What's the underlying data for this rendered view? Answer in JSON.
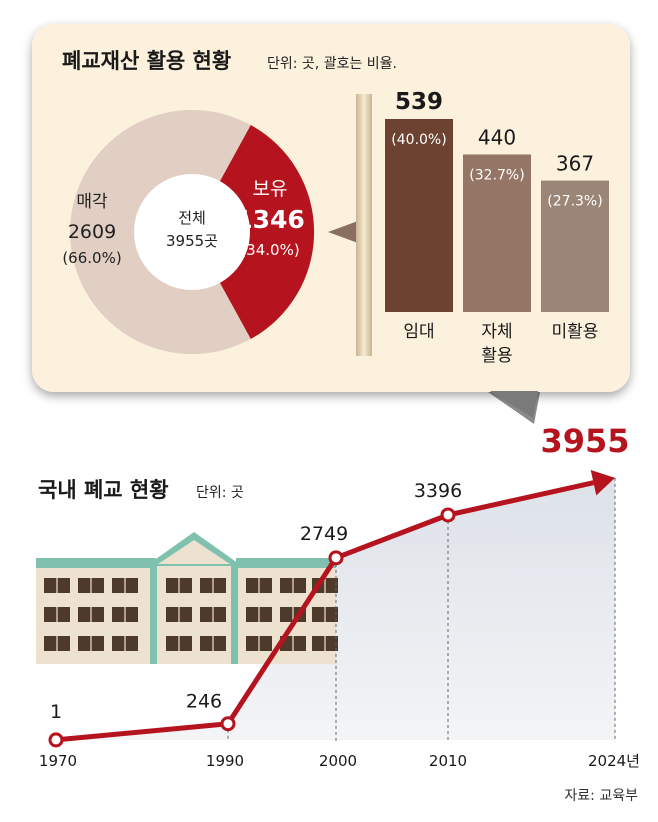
{
  "colors": {
    "card_bg": "#fbf1dc",
    "red": "#b5141e",
    "donut_beige": "#e0cfc2",
    "bar_dark": "#6d4230",
    "bar_mid": "#957565",
    "bar_light": "#9a8577",
    "area_fill": "#e8ebf0",
    "building_wall": "#ede2d0",
    "building_trim": "#7fc0ae",
    "window": "#4e3a2a"
  },
  "chart_data": [
    {
      "type": "pie",
      "title": "폐교재산 활용 현황",
      "subtitle": "단위: 곳, 괄호는 비율.",
      "center_label": "전체",
      "center_value": "3955곳",
      "slices": [
        {
          "name": "매각",
          "value": 2609,
          "value_text": "2609",
          "pct": 66.0,
          "pct_text": "(66.0%)",
          "color": "#e0cfc2"
        },
        {
          "name": "보유",
          "value": 1346,
          "value_text": "1346",
          "pct": 34.0,
          "pct_text": "(34.0%)",
          "color": "#b5141e"
        }
      ]
    },
    {
      "type": "bar",
      "categories": [
        "임대",
        "자체\n활용",
        "미활용"
      ],
      "category_lines": [
        [
          "임대"
        ],
        [
          "자체",
          "활용"
        ],
        [
          "미활용"
        ]
      ],
      "values": [
        539,
        440,
        367
      ],
      "value_labels": [
        "539",
        "440",
        "367"
      ],
      "pct_labels": [
        "(40.0%)",
        "(32.7%)",
        "(27.3%)"
      ],
      "colors": [
        "#6d4230",
        "#957565",
        "#9a8577"
      ]
    },
    {
      "type": "line",
      "title": "국내 폐교 현황",
      "subtitle": "단위: 곳",
      "x": [
        1970,
        1990,
        2000,
        2010,
        2024
      ],
      "x_labels": [
        "1970",
        "1990",
        "2000",
        "2010",
        "2024년"
      ],
      "values": [
        1,
        246,
        2749,
        3396,
        3955
      ],
      "value_labels": [
        "1",
        "246",
        "2749",
        "3396",
        "3955"
      ],
      "ylim": [
        0,
        4200
      ]
    }
  ],
  "source": "자료: 교육부"
}
